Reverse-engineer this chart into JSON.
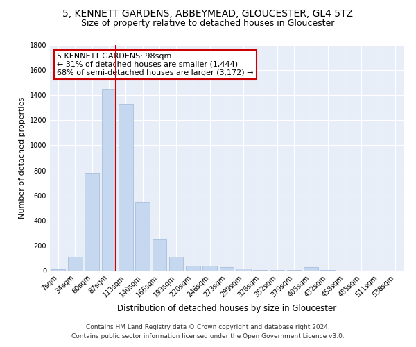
{
  "title": "5, KENNETT GARDENS, ABBEYMEAD, GLOUCESTER, GL4 5TZ",
  "subtitle": "Size of property relative to detached houses in Gloucester",
  "xlabel": "Distribution of detached houses by size in Gloucester",
  "ylabel": "Number of detached properties",
  "categories": [
    "7sqm",
    "34sqm",
    "60sqm",
    "87sqm",
    "113sqm",
    "140sqm",
    "166sqm",
    "193sqm",
    "220sqm",
    "246sqm",
    "273sqm",
    "299sqm",
    "326sqm",
    "352sqm",
    "379sqm",
    "405sqm",
    "432sqm",
    "458sqm",
    "485sqm",
    "511sqm",
    "538sqm"
  ],
  "values": [
    10,
    110,
    780,
    1450,
    1330,
    550,
    250,
    110,
    40,
    40,
    25,
    15,
    8,
    5,
    3,
    30,
    3,
    2,
    2,
    2,
    2
  ],
  "bar_color": "#c5d8f0",
  "bar_edge_color": "#a0b8d8",
  "vline_color": "#cc0000",
  "vline_pos": 3.42,
  "annotation_text": "5 KENNETT GARDENS: 98sqm\n← 31% of detached houses are smaller (1,444)\n68% of semi-detached houses are larger (3,172) →",
  "annotation_box_color": "#ffffff",
  "annotation_box_edge": "#cc0000",
  "ylim": [
    0,
    1800
  ],
  "yticks": [
    0,
    200,
    400,
    600,
    800,
    1000,
    1200,
    1400,
    1600,
    1800
  ],
  "bg_color": "#e8eef8",
  "footer1": "Contains HM Land Registry data © Crown copyright and database right 2024.",
  "footer2": "Contains public sector information licensed under the Open Government Licence v3.0.",
  "title_fontsize": 10,
  "subtitle_fontsize": 9,
  "xlabel_fontsize": 8.5,
  "ylabel_fontsize": 8,
  "tick_fontsize": 7,
  "annotation_fontsize": 8,
  "footer_fontsize": 6.5
}
